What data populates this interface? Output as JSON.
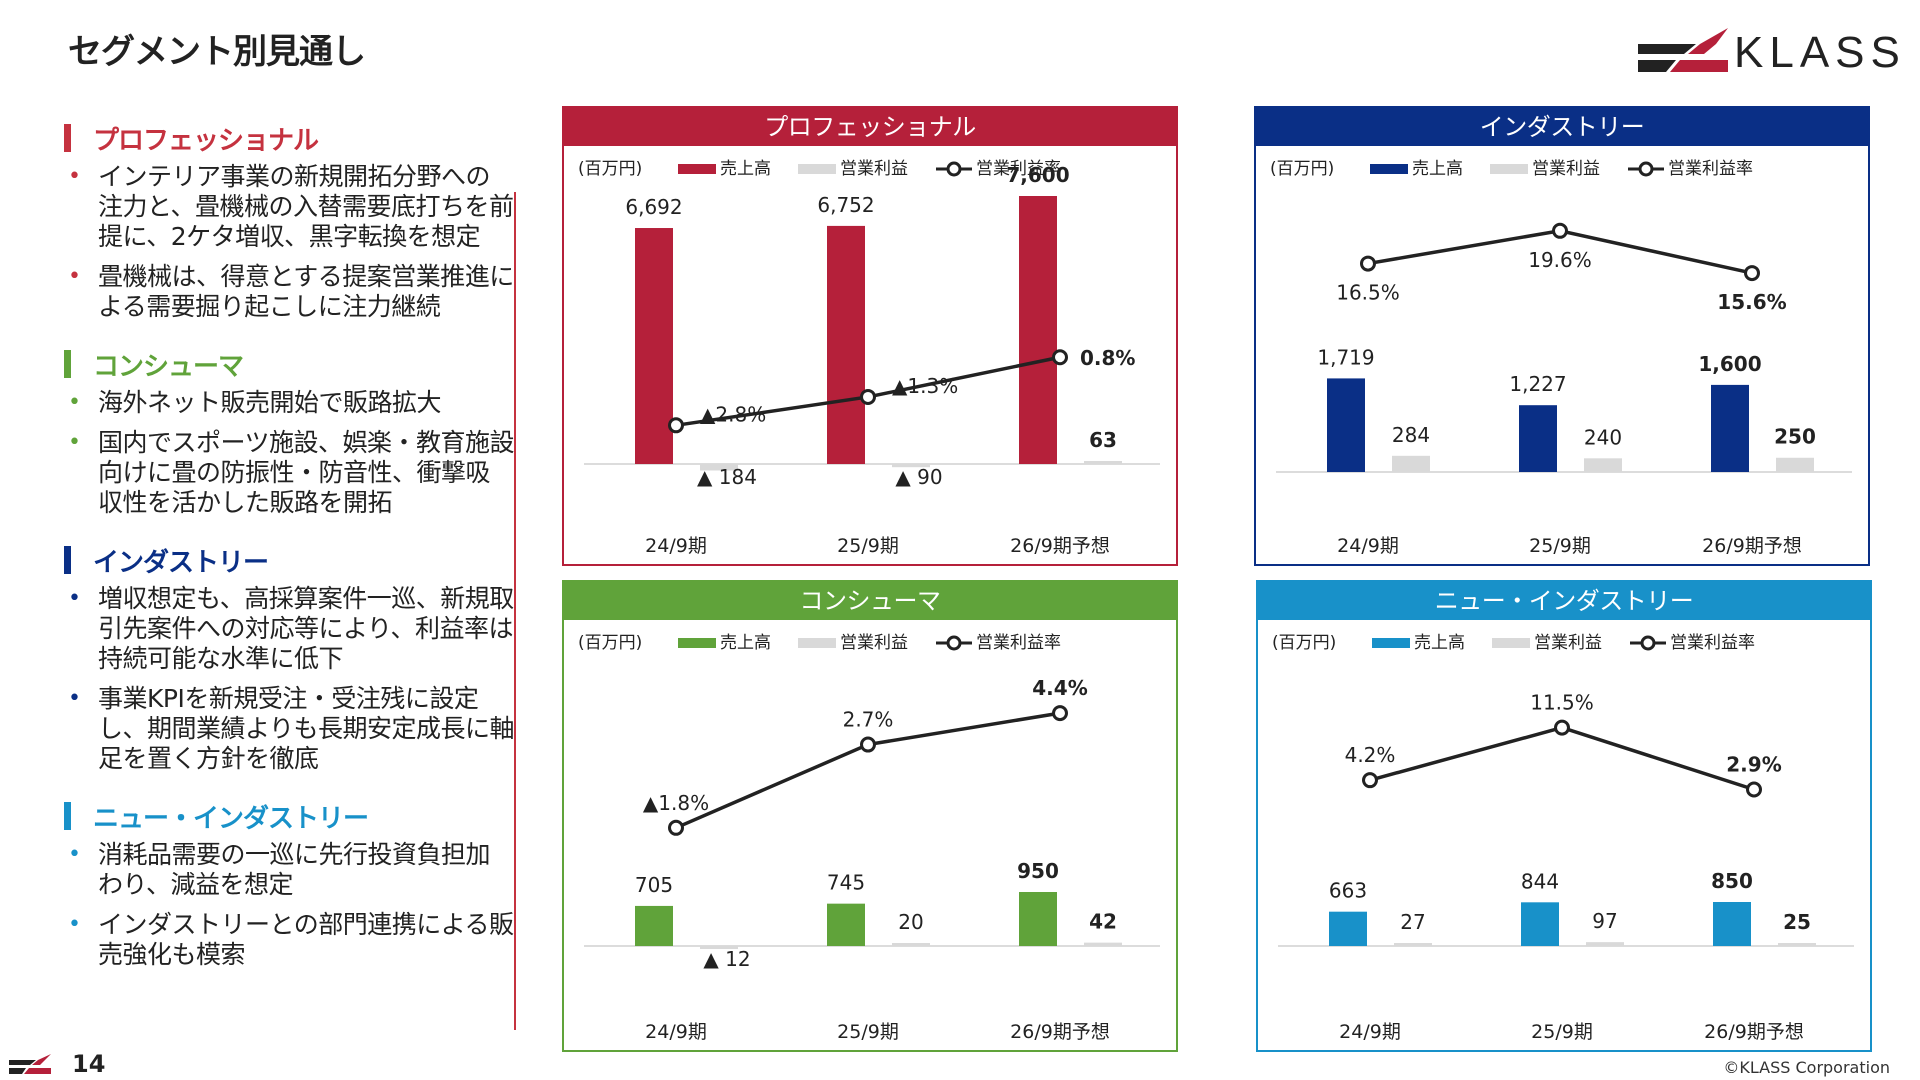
{
  "page": {
    "title": "セグメント別見通し",
    "logo_text": "KLASS",
    "page_number": "14",
    "copyright": "©KLASS Corporation"
  },
  "colors": {
    "professional": "#b5203a",
    "consumer": "#60a33a",
    "industry": "#0a2f86",
    "new_industry": "#1891c9",
    "profit_bar": "#d9d9d9",
    "line": "#222222"
  },
  "segments": [
    {
      "title": "プロフェッショナル",
      "color": "#c5323f",
      "bullets": [
        "インテリア事業の新規開拓分野への注力と、畳機械の入替需要底打ちを前提に、2ケタ増収、黒字転換を想定",
        "畳機械は、得意とする提案営業推進による需要掘り起こしに注力継続"
      ]
    },
    {
      "title": "コンシューマ",
      "color": "#60a33a",
      "bullets": [
        "海外ネット販売開始で販路拡大",
        "国内でスポーツ施設、娯楽・教育施設向けに畳の防振性・防音性、衝撃吸収性を活かした販路を開拓"
      ]
    },
    {
      "title": "インダストリー",
      "color": "#0a2f86",
      "bullets": [
        "増収想定も、高採算案件一巡、新規取引先案件への対応等により、利益率は持続可能な水準に低下",
        "事業KPIを新規受注・受注残に設定し、期間業績よりも長期安定成長に軸足を置く方針を徹底"
      ]
    },
    {
      "title": "ニュー・インダストリー",
      "color": "#1891c9",
      "bullets": [
        "消耗品需要の一巡に先行投資負担加わり、減益を想定",
        "インダストリーとの部門連携による販売強化も模索"
      ]
    }
  ],
  "legend": {
    "unit": "(百万円)",
    "sales": "売上高",
    "profit": "営業利益",
    "margin": "営業利益率"
  },
  "chart_data": [
    {
      "type": "bar",
      "title": "プロフェッショナル",
      "categories": [
        "24/9期",
        "25/9期",
        "26/9期予想"
      ],
      "series": [
        {
          "name": "売上高",
          "values": [
            6692,
            6752,
            7600
          ],
          "labels": [
            "6,692",
            "6,752",
            "7,600"
          ]
        },
        {
          "name": "営業利益",
          "values": [
            -184,
            -90,
            63
          ],
          "labels": [
            "▲ 184",
            "▲ 90",
            "63"
          ]
        },
        {
          "name": "営業利益率",
          "values": [
            -2.8,
            -1.3,
            0.8
          ],
          "labels": [
            "▲2.8%",
            "▲1.3%",
            "0.8%"
          ]
        }
      ]
    },
    {
      "type": "bar",
      "title": "インダストリー",
      "categories": [
        "24/9期",
        "25/9期",
        "26/9期予想"
      ],
      "series": [
        {
          "name": "売上高",
          "values": [
            1719,
            1227,
            1600
          ],
          "labels": [
            "1,719",
            "1,227",
            "1,600"
          ]
        },
        {
          "name": "営業利益",
          "values": [
            284,
            240,
            250
          ],
          "labels": [
            "284",
            "240",
            "250"
          ]
        },
        {
          "name": "営業利益率",
          "values": [
            16.5,
            19.6,
            15.6
          ],
          "labels": [
            "16.5%",
            "19.6%",
            "15.6%"
          ]
        }
      ]
    },
    {
      "type": "bar",
      "title": "コンシューマ",
      "categories": [
        "24/9期",
        "25/9期",
        "26/9期予想"
      ],
      "series": [
        {
          "name": "売上高",
          "values": [
            705,
            745,
            950
          ],
          "labels": [
            "705",
            "745",
            "950"
          ]
        },
        {
          "name": "営業利益",
          "values": [
            -12,
            20,
            42
          ],
          "labels": [
            "▲ 12",
            "20",
            "42"
          ]
        },
        {
          "name": "営業利益率",
          "values": [
            -1.8,
            2.7,
            4.4
          ],
          "labels": [
            "▲1.8%",
            "2.7%",
            "4.4%"
          ]
        }
      ]
    },
    {
      "type": "bar",
      "title": "ニュー・インダストリー",
      "categories": [
        "24/9期",
        "25/9期",
        "26/9期予想"
      ],
      "series": [
        {
          "name": "売上高",
          "values": [
            663,
            844,
            850
          ],
          "labels": [
            "663",
            "844",
            "850"
          ]
        },
        {
          "name": "営業利益",
          "values": [
            27,
            97,
            25
          ],
          "labels": [
            "27",
            "97",
            "25"
          ]
        },
        {
          "name": "営業利益率",
          "values": [
            4.2,
            11.5,
            2.9
          ],
          "labels": [
            "4.2%",
            "11.5%",
            "2.9%"
          ]
        }
      ]
    }
  ]
}
